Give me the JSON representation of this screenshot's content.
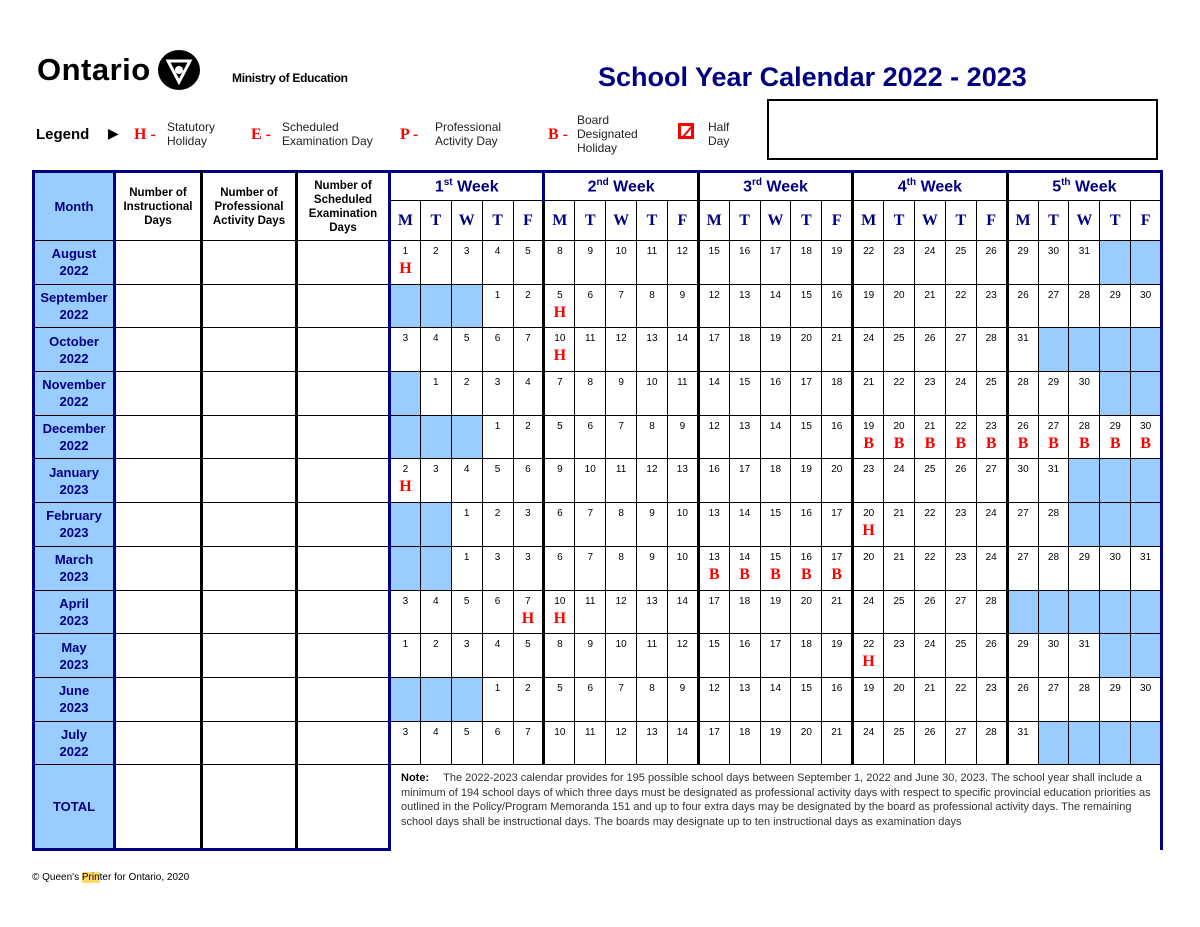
{
  "header": {
    "logo_text": "Ontario",
    "ministry": "Ministry of Education",
    "title": "School Year Calendar 2022 - 2023"
  },
  "legend": {
    "label": "Legend",
    "items": [
      {
        "code": "H -",
        "text1": "Statutory",
        "text2": "Holiday",
        "text3": ""
      },
      {
        "code": "E -",
        "text1": "Scheduled",
        "text2": "Examination Day",
        "text3": ""
      },
      {
        "code": "P -",
        "text1": "Professional",
        "text2": "Activity Day",
        "text3": ""
      },
      {
        "code": "B -",
        "text1": "Board",
        "text2": "Designated",
        "text3": "Holiday"
      }
    ],
    "half_day": {
      "text1": "Half",
      "text2": "Day"
    }
  },
  "columns": {
    "month": "Month",
    "instructional": [
      "Number of",
      "Instructional",
      "Days"
    ],
    "professional": [
      "Number of",
      "Professional",
      "Activity Days"
    ],
    "exam": [
      "Number of",
      "Scheduled",
      "Examination",
      "Days"
    ]
  },
  "weeks": [
    {
      "n": "1",
      "sup": "st",
      "label": "Week"
    },
    {
      "n": "2",
      "sup": "nd",
      "label": "Week"
    },
    {
      "n": "3",
      "sup": "rd",
      "label": "Week"
    },
    {
      "n": "4",
      "sup": "th",
      "label": "Week"
    },
    {
      "n": "5",
      "sup": "th",
      "label": "Week"
    }
  ],
  "weekdays": [
    "M",
    "T",
    "W",
    "T",
    "F"
  ],
  "colors": {
    "navy": "#000080",
    "shade": "#99ccff",
    "mark": "#ff0000"
  },
  "months": [
    {
      "name": "August",
      "year": "2022",
      "days": [
        "1H",
        "2",
        "3",
        "4",
        "5",
        "8",
        "9",
        "10",
        "11",
        "12",
        "15",
        "16",
        "17",
        "18",
        "19",
        "22",
        "23",
        "24",
        "25",
        "26",
        "29",
        "30",
        "31",
        "",
        ""
      ]
    },
    {
      "name": "September",
      "year": "2022",
      "days": [
        "",
        "",
        "",
        "1",
        "2",
        "5H",
        "6",
        "7",
        "8",
        "9",
        "12",
        "13",
        "14",
        "15",
        "16",
        "19",
        "20",
        "21",
        "22",
        "23",
        "26",
        "27",
        "28",
        "29",
        "30"
      ]
    },
    {
      "name": "October",
      "year": "2022",
      "days": [
        "3",
        "4",
        "5",
        "6",
        "7",
        "10H",
        "11",
        "12",
        "13",
        "14",
        "17",
        "18",
        "19",
        "20",
        "21",
        "24",
        "25",
        "26",
        "27",
        "28",
        "31",
        "",
        "",
        "",
        ""
      ]
    },
    {
      "name": "November",
      "year": "2022",
      "days": [
        "",
        "1",
        "2",
        "3",
        "4",
        "7",
        "8",
        "9",
        "10",
        "11",
        "14",
        "15",
        "16",
        "17",
        "18",
        "21",
        "22",
        "23",
        "24",
        "25",
        "28",
        "29",
        "30",
        "",
        ""
      ]
    },
    {
      "name": "December",
      "year": "2022",
      "days": [
        "",
        "",
        "",
        "1",
        "2",
        "5",
        "6",
        "7",
        "8",
        "9",
        "12",
        "13",
        "14",
        "15",
        "16",
        "19B",
        "20B",
        "21B",
        "22B",
        "23B",
        "26B",
        "27B",
        "28B",
        "29B",
        "30B"
      ]
    },
    {
      "name": "January",
      "year": "2023",
      "days": [
        "2H",
        "3",
        "4",
        "5",
        "6",
        "9",
        "10",
        "11",
        "12",
        "13",
        "16",
        "17",
        "18",
        "19",
        "20",
        "23",
        "24",
        "25",
        "26",
        "27",
        "30",
        "31",
        "",
        "",
        ""
      ]
    },
    {
      "name": "February",
      "year": "2023",
      "days": [
        "",
        "",
        "1",
        "2",
        "3",
        "6",
        "7",
        "8",
        "9",
        "10",
        "13",
        "14",
        "15",
        "16",
        "17",
        "20H",
        "21",
        "22",
        "23",
        "24",
        "27",
        "28",
        "",
        "",
        ""
      ]
    },
    {
      "name": "March",
      "year": "2023",
      "days": [
        "",
        "",
        "1",
        "3",
        "3",
        "6",
        "7",
        "8",
        "9",
        "10",
        "13B",
        "14B",
        "15B",
        "16B",
        "17B",
        "20",
        "21",
        "22",
        "23",
        "24",
        "27",
        "28",
        "29",
        "30",
        "31"
      ]
    },
    {
      "name": "April",
      "year": "2023",
      "days": [
        "3",
        "4",
        "5",
        "6",
        "7H",
        "10H",
        "11",
        "12",
        "13",
        "14",
        "17",
        "18",
        "19",
        "20",
        "21",
        "24",
        "25",
        "26",
        "27",
        "28",
        "",
        "",
        "",
        "",
        ""
      ]
    },
    {
      "name": "May",
      "year": "2023",
      "days": [
        "1",
        "2",
        "3",
        "4",
        "5",
        "8",
        "9",
        "10",
        "11",
        "12",
        "15",
        "16",
        "17",
        "18",
        "19",
        "22H",
        "23",
        "24",
        "25",
        "26",
        "29",
        "30",
        "31",
        "",
        ""
      ]
    },
    {
      "name": "June",
      "year": "2023",
      "days": [
        "",
        "",
        "",
        "1",
        "2",
        "5",
        "6",
        "7",
        "8",
        "9",
        "12",
        "13",
        "14",
        "15",
        "16",
        "19",
        "20",
        "21",
        "22",
        "23",
        "26",
        "27",
        "28",
        "29",
        "30"
      ]
    },
    {
      "name": "July",
      "year": "2022",
      "days": [
        "3",
        "4",
        "5",
        "6",
        "7",
        "10",
        "11",
        "12",
        "13",
        "14",
        "17",
        "18",
        "19",
        "20",
        "21",
        "24",
        "25",
        "26",
        "27",
        "28",
        "31",
        "",
        "",
        "",
        ""
      ]
    }
  ],
  "total": {
    "label": "TOTAL"
  },
  "note": {
    "label": "Note:",
    "text": "The 2022-2023 calendar provides for 195 possible school days between September 1, 2022 and June 30, 2023. The school year shall include a minimum of 194 school days of which three days must be designated as professional activity days with respect to specific provincial education priorities as outlined in the Policy/Program Memoranda 151 and up to four extra days may be designated by the board as professional activity days.  The remaining school days shall be instructional days.  The boards may designate up to ten instructional days as examination days"
  },
  "footer": {
    "pre": "© Queen's ",
    "highlight": "Prin",
    "post": "ter for Ontario, 2020"
  }
}
